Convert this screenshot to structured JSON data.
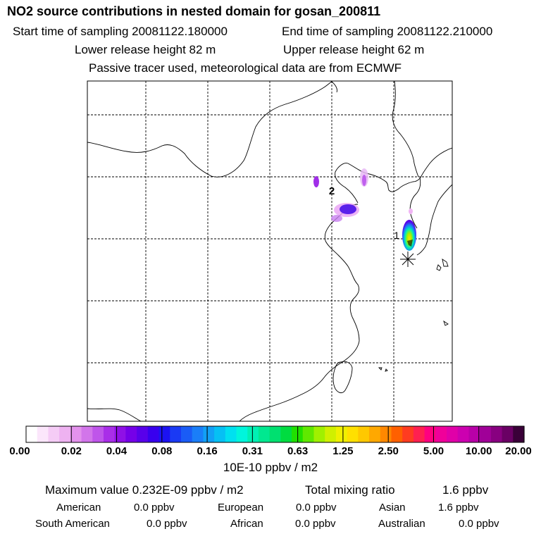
{
  "header": {
    "title": "NO2 source contributions in nested domain for gosan_200811",
    "start_time": "Start time of sampling 20081122.180000",
    "end_time": "End time of sampling 20081122.210000",
    "lower_height": "Lower release height   82 m",
    "upper_height": "Upper release height   62 m",
    "tracer_note": "Passive tracer used, meteorological data are from ECMWF"
  },
  "chart_data": {
    "type": "heatmap",
    "title": "NO2 source contributions in nested domain for gosan_200811",
    "map_labels": [
      "1",
      "2"
    ],
    "receptor_marker": "asterisk",
    "colorbar": {
      "unit": "10E-10 ppbv / m2",
      "ticks": [
        "0.00",
        "0.02",
        "0.04",
        "0.08",
        "0.16",
        "0.31",
        "0.63",
        "1.25",
        "2.50",
        "5.00",
        "10.00",
        "20.00"
      ],
      "colors": [
        "#ffffff",
        "#fbe6fb",
        "#f5ccf6",
        "#eeb2f1",
        "#e392ec",
        "#d275ea",
        "#bf55ea",
        "#a92ee8",
        "#8f10e6",
        "#7500e8",
        "#5800ea",
        "#3800ee",
        "#1c12f2",
        "#1a3af4",
        "#1a5cf6",
        "#1a7ef8",
        "#12a0f6",
        "#06c0f4",
        "#00e0f0",
        "#00f5dc",
        "#00f0b4",
        "#00e890",
        "#00e070",
        "#00dc40",
        "#20e000",
        "#60e800",
        "#a0f000",
        "#d0f000",
        "#f0f000",
        "#ffe000",
        "#ffc800",
        "#ffa800",
        "#ff8800",
        "#ff6000",
        "#ff3c20",
        "#ff2050",
        "#ff0080",
        "#f0009a",
        "#e000a8",
        "#cc00b0",
        "#b800a8",
        "#a00098",
        "#880080",
        "#6a0064",
        "#3a0038"
      ]
    },
    "max_value": "0.232E-09",
    "max_value_unit": "ppbv / m2",
    "total_mixing_ratio_ppbv": 1.6
  },
  "stats": {
    "max_line": "Maximum value  0.232E-09 ppbv / m2",
    "total_label": "Total mixing ratio",
    "total_value": "1.6 ppbv"
  },
  "regions": [
    {
      "name": "American",
      "value": "0.0 ppbv"
    },
    {
      "name": "European",
      "value": "0.0 ppbv"
    },
    {
      "name": "Asian",
      "value": "1.6 ppbv"
    },
    {
      "name": "South American",
      "value": "0.0 ppbv"
    },
    {
      "name": "African",
      "value": "0.0 ppbv"
    },
    {
      "name": "Australian",
      "value": "0.0 ppbv"
    }
  ]
}
